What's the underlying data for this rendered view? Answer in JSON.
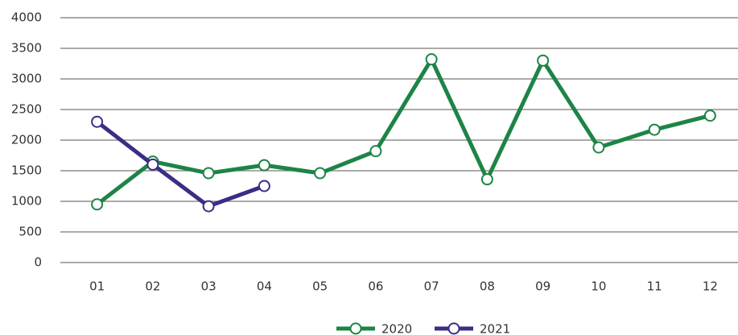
{
  "chart_data": {
    "type": "line",
    "categories": [
      "01",
      "02",
      "03",
      "04",
      "05",
      "06",
      "07",
      "08",
      "09",
      "10",
      "11",
      "12"
    ],
    "series": [
      {
        "name": "2020",
        "color": "#1d8446",
        "values": [
          950,
          1650,
          1460,
          1590,
          1460,
          1820,
          3320,
          1360,
          3300,
          1880,
          2170,
          2400
        ]
      },
      {
        "name": "2021",
        "color": "#3a2d86",
        "values": [
          2300,
          1600,
          920,
          1250,
          null,
          null,
          null,
          null,
          null,
          null,
          null,
          null
        ]
      }
    ],
    "ylim": [
      0,
      4000
    ],
    "yticks": [
      0,
      500,
      1000,
      1500,
      2000,
      2500,
      3000,
      3500,
      4000
    ],
    "grid": true,
    "legend": "bottom"
  }
}
